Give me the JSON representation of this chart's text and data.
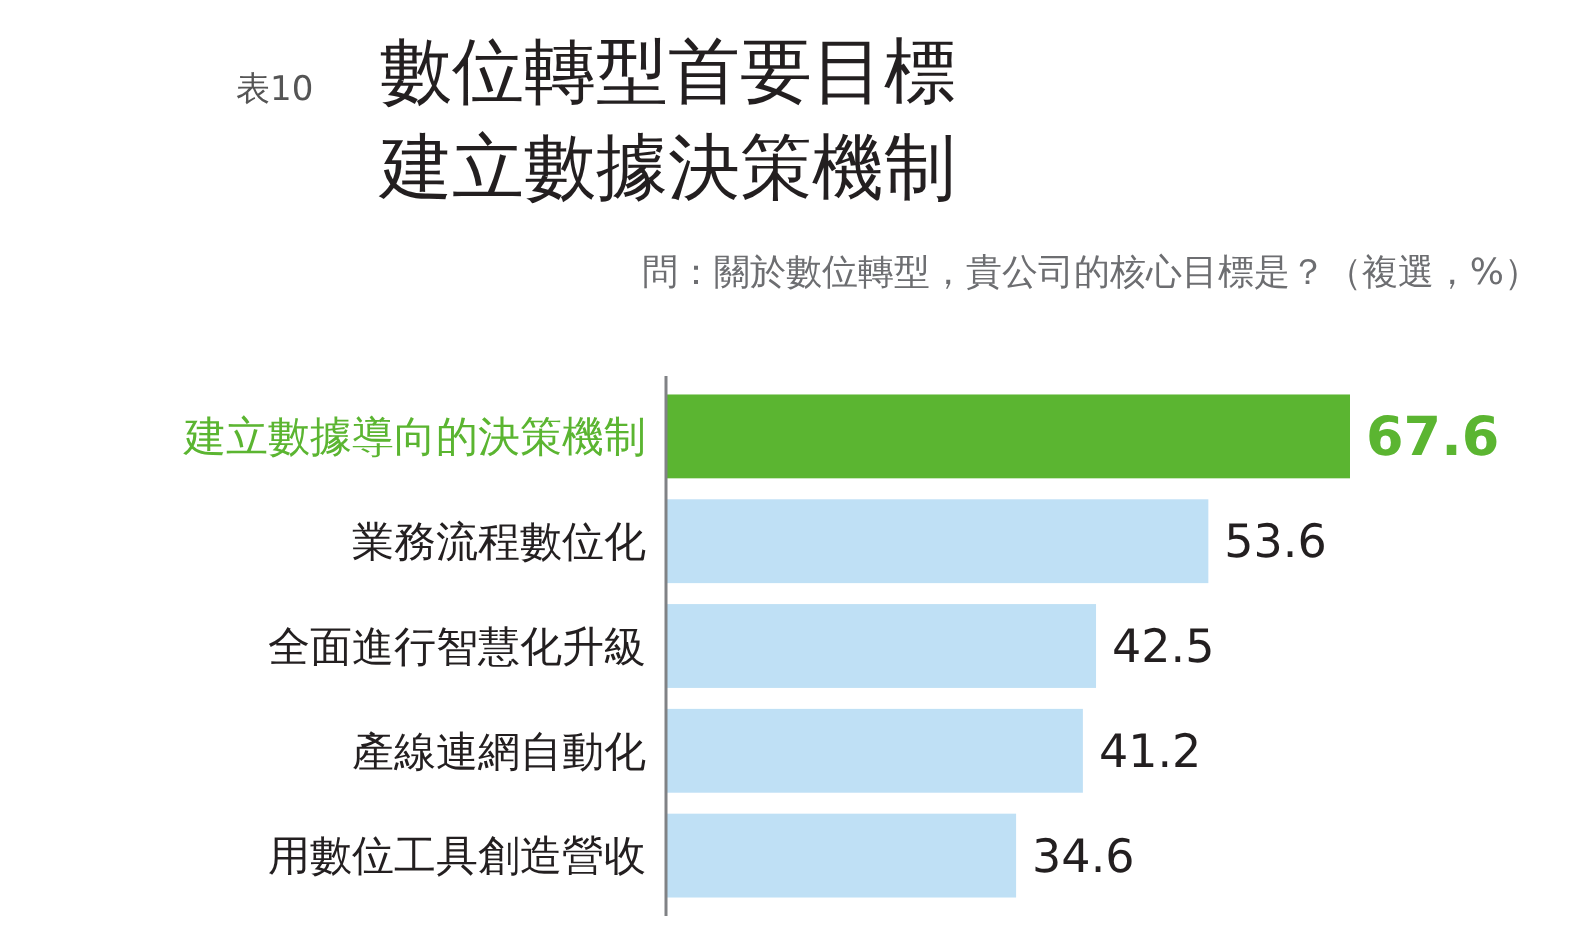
{
  "chart_data": {
    "type": "bar",
    "orientation": "horizontal",
    "title": "數位轉型首要目標",
    "subtitle": "建立數據決策機制",
    "annotations": [
      "表10",
      "問：關於數位轉型，貴公司的核心目標是？（複選，%）"
    ],
    "categories": [
      "建立數據導向的決策機制",
      "業務流程數位化",
      "全面進行智慧化升級",
      "產線連網自動化",
      "用數位工具創造營收"
    ],
    "values": [
      67.6,
      53.6,
      42.5,
      41.2,
      34.6
    ],
    "colors": [
      "#5bb531",
      "#bfe0f5",
      "#bfe0f5",
      "#bfe0f5",
      "#bfe0f5"
    ],
    "relative": false,
    "data_labels": true
  }
}
